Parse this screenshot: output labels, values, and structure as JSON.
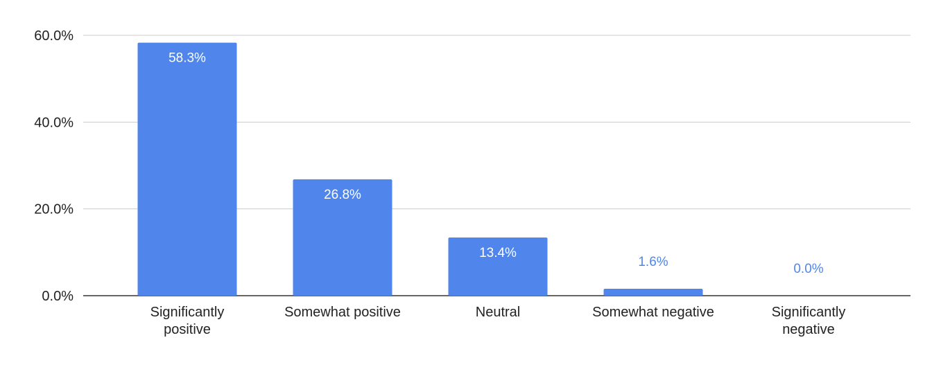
{
  "chart_data": {
    "type": "bar",
    "title": "",
    "xlabel": "",
    "ylabel": "",
    "categories": [
      [
        "Significantly",
        "positive"
      ],
      [
        "Somewhat positive"
      ],
      [
        "Neutral"
      ],
      [
        "Somewhat negative"
      ],
      [
        "Significantly",
        "negative"
      ]
    ],
    "values": [
      58.3,
      26.8,
      13.4,
      1.6,
      0.0
    ],
    "data_labels": [
      "58.3%",
      "26.8%",
      "13.4%",
      "1.6%",
      "0.0%"
    ],
    "ylim": [
      0,
      60
    ],
    "yticks": [
      0,
      20,
      40,
      60
    ],
    "ytick_labels": [
      "0.0%",
      "20.0%",
      "40.0%",
      "60.0%"
    ],
    "grid": true,
    "legend": "none",
    "colors": {
      "bar": "#5086ec",
      "label_inside": "#ffffff",
      "label_outside": "#5086ec",
      "grid": "#cccccc",
      "axis": "#333333"
    }
  }
}
